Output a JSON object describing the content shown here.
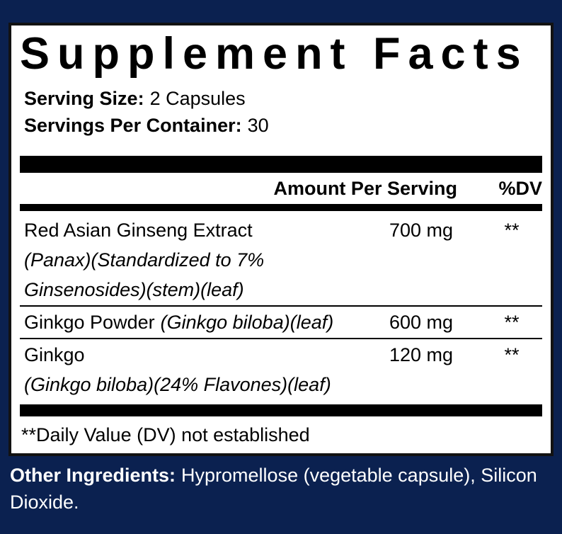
{
  "colors": {
    "background": "#0b2150",
    "panel_background": "#ffffff",
    "panel_border": "#121212",
    "text": "#000000",
    "other_ingredients_text": "#ffffff"
  },
  "label": {
    "title": "Supplement Facts",
    "serving": {
      "size_label": "Serving Size:",
      "size_value": "2 Capsules",
      "container_label": "Servings Per Container:",
      "container_value": "30"
    },
    "header": {
      "amount": "Amount Per Serving",
      "dv": "%DV"
    },
    "rows": [
      {
        "name": "Red Asian Ginseng Extract",
        "amount": "700 mg",
        "dv": "**",
        "details": [
          "(Panax)(Standardized to 7%",
          "Ginsenosides)(stem)(leaf)"
        ]
      },
      {
        "name": "Ginkgo Powder",
        "name_italic": "(Ginkgo biloba)(leaf)",
        "amount": "600 mg",
        "dv": "**"
      },
      {
        "name": "Ginkgo",
        "amount": "120 mg",
        "dv": "**",
        "details": [
          "(Ginkgo biloba)(24% Flavones)(leaf)"
        ]
      }
    ],
    "footnote": "**Daily Value (DV) not established",
    "other": {
      "label": "Other Ingredients:",
      "value": "Hypromellose (vegetable capsule), Silicon Dioxide."
    }
  }
}
